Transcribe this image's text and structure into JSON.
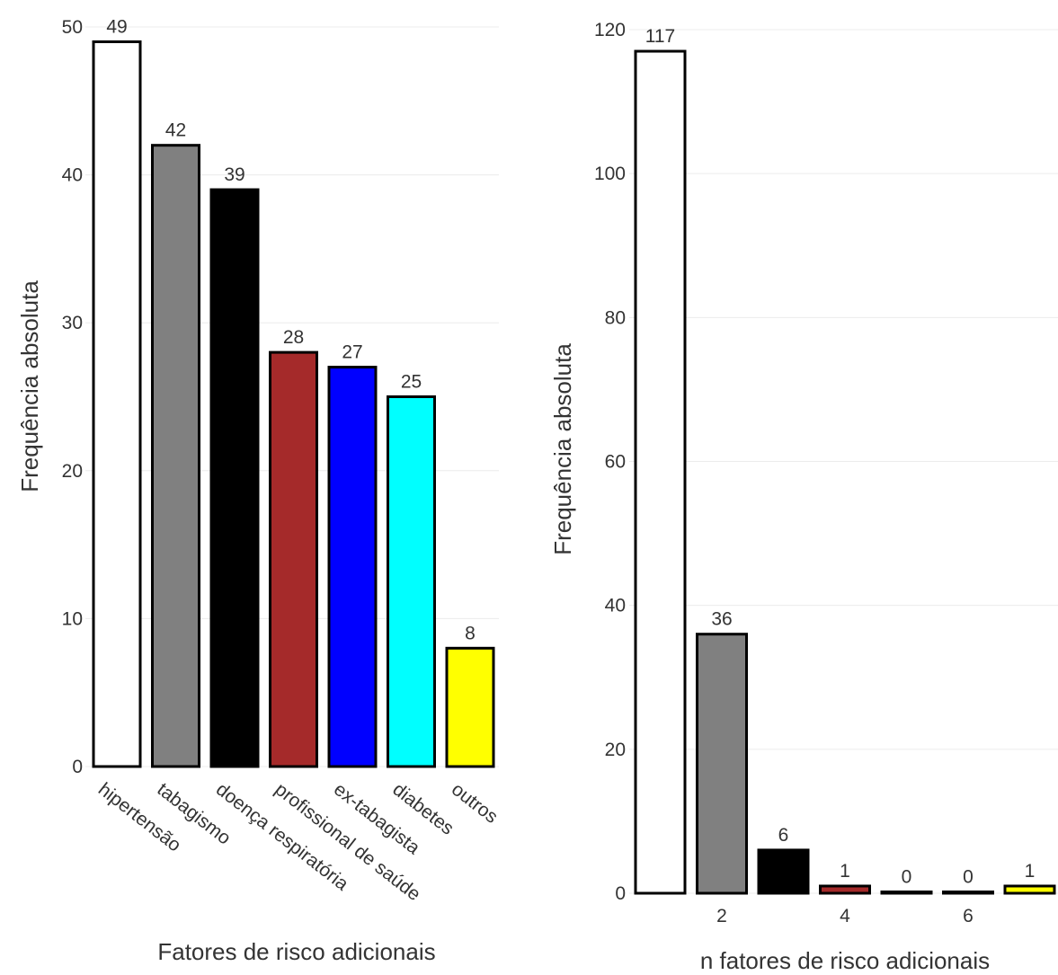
{
  "chart_data": [
    {
      "type": "bar",
      "categories": [
        "hipertensão",
        "tabagismo",
        "doença respiratória",
        "profissional de saúde",
        "ex-tabagista",
        "diabetes",
        "outros"
      ],
      "values": [
        49,
        42,
        39,
        28,
        27,
        25,
        8
      ],
      "colors": [
        "#ffffff",
        "#808080",
        "#000000",
        "#a52a2a",
        "#0000ff",
        "#00ffff",
        "#ffff00"
      ],
      "xlabel": "Fatores de risco adicionais",
      "ylabel": "Frequência absoluta",
      "ylim": [
        0,
        50
      ],
      "yticks": [
        0,
        10,
        20,
        30,
        40,
        50
      ],
      "grid": true,
      "legend": false
    },
    {
      "type": "bar",
      "x": [
        1,
        2,
        3,
        4,
        5,
        6,
        7
      ],
      "values": [
        117,
        36,
        6,
        1,
        0,
        0,
        1
      ],
      "colors": [
        "#ffffff",
        "#808080",
        "#000000",
        "#a52a2a",
        "#0000ff",
        "#00ffff",
        "#ffff00"
      ],
      "xticks": [
        2,
        4,
        6
      ],
      "xlabel": "n fatores de risco adicionais",
      "ylabel": "Frequência absoluta",
      "ylim": [
        0,
        120
      ],
      "yticks": [
        0,
        20,
        40,
        60,
        80,
        100,
        120
      ],
      "grid": true,
      "legend": false
    }
  ]
}
